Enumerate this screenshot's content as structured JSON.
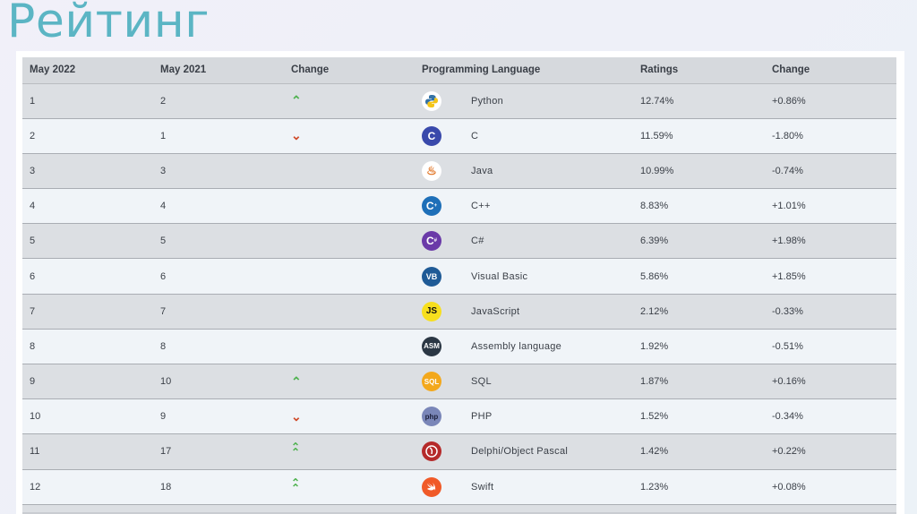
{
  "title": "Рейтинг",
  "table": {
    "headers": [
      "May 2022",
      "May 2021",
      "Change",
      "Programming Language",
      "Ratings",
      "Change"
    ],
    "rows": [
      {
        "may2022": "1",
        "may2021": "2",
        "change": "up",
        "icon": "python-icon",
        "language": "Python",
        "ratings": "12.74%",
        "delta": "+0.86%"
      },
      {
        "may2022": "2",
        "may2021": "1",
        "change": "down",
        "icon": "c-icon",
        "language": "C",
        "ratings": "11.59%",
        "delta": "-1.80%"
      },
      {
        "may2022": "3",
        "may2021": "3",
        "change": "",
        "icon": "java-icon",
        "language": "Java",
        "ratings": "10.99%",
        "delta": "-0.74%"
      },
      {
        "may2022": "4",
        "may2021": "4",
        "change": "",
        "icon": "cpp-icon",
        "language": "C++",
        "ratings": "8.83%",
        "delta": "+1.01%"
      },
      {
        "may2022": "5",
        "may2021": "5",
        "change": "",
        "icon": "csharp-icon",
        "language": "C#",
        "ratings": "6.39%",
        "delta": "+1.98%"
      },
      {
        "may2022": "6",
        "may2021": "6",
        "change": "",
        "icon": "visual-basic-icon",
        "language": "Visual Basic",
        "ratings": "5.86%",
        "delta": "+1.85%"
      },
      {
        "may2022": "7",
        "may2021": "7",
        "change": "",
        "icon": "javascript-icon",
        "language": "JavaScript",
        "ratings": "2.12%",
        "delta": "-0.33%"
      },
      {
        "may2022": "8",
        "may2021": "8",
        "change": "",
        "icon": "assembly-icon",
        "language": "Assembly language",
        "ratings": "1.92%",
        "delta": "-0.51%"
      },
      {
        "may2022": "9",
        "may2021": "10",
        "change": "up",
        "icon": "sql-icon",
        "language": "SQL",
        "ratings": "1.87%",
        "delta": "+0.16%"
      },
      {
        "may2022": "10",
        "may2021": "9",
        "change": "down",
        "icon": "php-icon",
        "language": "PHP",
        "ratings": "1.52%",
        "delta": "-0.34%"
      },
      {
        "may2022": "11",
        "may2021": "17",
        "change": "double-up",
        "icon": "delphi-icon",
        "language": "Delphi/Object Pascal",
        "ratings": "1.42%",
        "delta": "+0.22%"
      },
      {
        "may2022": "12",
        "may2021": "18",
        "change": "double-up",
        "icon": "swift-icon",
        "language": "Swift",
        "ratings": "1.23%",
        "delta": "+0.08%"
      }
    ]
  },
  "logos": {
    "python-icon": {
      "text": "",
      "bg": "#ffffff",
      "fg": "#3572a5"
    },
    "c-icon": {
      "text": "C",
      "bg": "#3949ab",
      "fg": "#ffffff"
    },
    "java-icon": {
      "text": "♨",
      "bg": "#ffffff",
      "fg": "#e0701e"
    },
    "cpp-icon": {
      "text": "C",
      "bg": "#1e6fb8",
      "fg": "#ffffff"
    },
    "csharp-icon": {
      "text": "C",
      "bg": "#6a3aa8",
      "fg": "#ffffff"
    },
    "visual-basic-icon": {
      "text": "VB",
      "bg": "#1f5a96",
      "fg": "#ffffff"
    },
    "javascript-icon": {
      "text": "JS",
      "bg": "#f7df1e",
      "fg": "#111111"
    },
    "assembly-icon": {
      "text": "ASM",
      "bg": "#2b3744",
      "fg": "#ffffff"
    },
    "sql-icon": {
      "text": "SQL",
      "bg": "#f3a81c",
      "fg": "#ffffff"
    },
    "php-icon": {
      "text": "php",
      "bg": "#7a86b8",
      "fg": "#1b1f3a"
    },
    "delphi-icon": {
      "text": "",
      "bg": "#b52a2a",
      "fg": "#ffffff"
    },
    "swift-icon": {
      "text": "",
      "bg": "#f05a28",
      "fg": "#ffffff"
    }
  },
  "colors": {
    "title": "#5bb5c4",
    "arrow_up": "#4fb24f",
    "arrow_down": "#cf4a2a"
  }
}
